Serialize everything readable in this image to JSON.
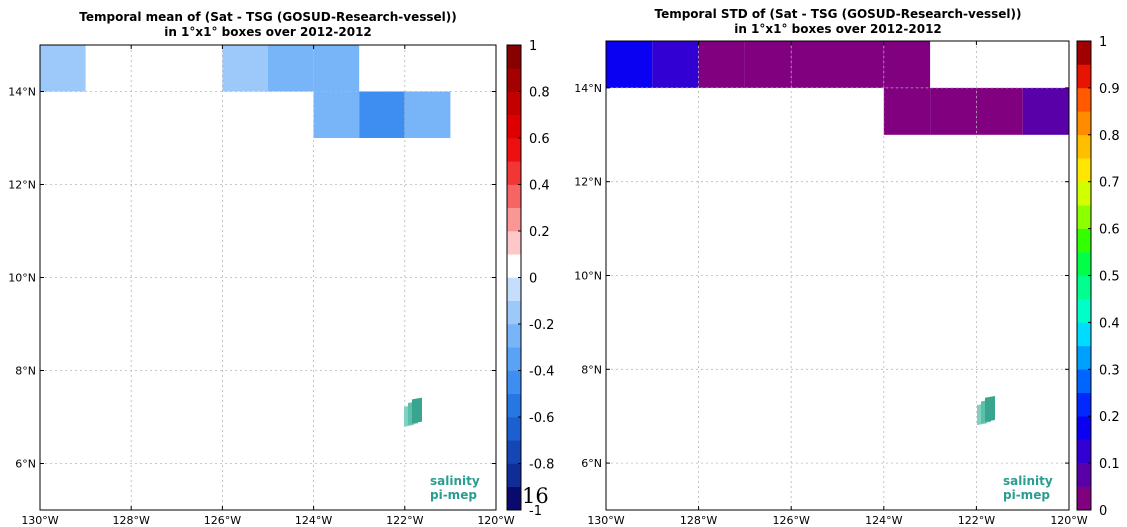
{
  "chart_data": [
    {
      "type": "heatmap",
      "title_line1": "Temporal mean of (Sat - TSG (GOSUD-Research-vessel))",
      "title_line2": "in 1°x1° boxes over 2012-2012",
      "xlim": [
        -130,
        -120
      ],
      "ylim": [
        5,
        15
      ],
      "x_ticks": [
        -130,
        -128,
        -126,
        -124,
        -122,
        -120
      ],
      "x_tick_labels": [
        "130°W",
        "128°W",
        "126°W",
        "124°W",
        "122°W",
        "120°W"
      ],
      "y_ticks": [
        6,
        8,
        10,
        12,
        14
      ],
      "y_tick_labels": [
        "6°N",
        "8°N",
        "10°N",
        "12°N",
        "14°N"
      ],
      "grid": true,
      "colorbar": {
        "range": [
          -1,
          1
        ],
        "step": 0.1,
        "tick_values": [
          1,
          0.8,
          0.6,
          0.4,
          0.2,
          0,
          -0.2,
          -0.4,
          -0.6,
          -0.8,
          -1
        ],
        "tick_labels": [
          "1",
          "0.8",
          "0.6",
          "0.4",
          "0.2",
          "0",
          "-0.2",
          "-0.4",
          "-0.6",
          "-0.8",
          "-1"
        ],
        "colors": [
          "#0a0a6e",
          "#102c96",
          "#1646b4",
          "#1c5fd0",
          "#2676e4",
          "#3e8ef2",
          "#5aa2f6",
          "#78b4f8",
          "#9cc8fa",
          "#c4defc",
          "#ffffff",
          "#fcc8c8",
          "#fa9696",
          "#f66464",
          "#f23636",
          "#ee1010",
          "#de0000",
          "#c20000",
          "#a40000",
          "#880000"
        ]
      },
      "cells": [
        {
          "lon": -130,
          "lat": 14,
          "value": -0.15
        },
        {
          "lon": -126,
          "lat": 14,
          "value": -0.15
        },
        {
          "lon": -125,
          "lat": 14,
          "value": -0.25
        },
        {
          "lon": -124,
          "lat": 14,
          "value": -0.25
        },
        {
          "lon": -124,
          "lat": 13,
          "value": -0.25
        },
        {
          "lon": -123,
          "lat": 13,
          "value": -0.45
        },
        {
          "lon": -122,
          "lat": 13,
          "value": -0.25
        }
      ]
    },
    {
      "type": "heatmap",
      "title_line1": "Temporal STD of (Sat - TSG (GOSUD-Research-vessel))",
      "title_line2": "in 1°x1° boxes over 2012-2012",
      "xlim": [
        -130,
        -120
      ],
      "ylim": [
        5,
        15
      ],
      "x_ticks": [
        -130,
        -128,
        -126,
        -124,
        -122,
        -120
      ],
      "x_tick_labels": [
        "130°W",
        "128°W",
        "126°W",
        "124°W",
        "122°W",
        "120°W"
      ],
      "y_ticks": [
        6,
        8,
        10,
        12,
        14
      ],
      "y_tick_labels": [
        "6°N",
        "8°N",
        "10°N",
        "12°N",
        "14°N"
      ],
      "grid": true,
      "colorbar": {
        "range": [
          0,
          1
        ],
        "step": 0.05,
        "tick_values": [
          1,
          0.9,
          0.8,
          0.7,
          0.6,
          0.5,
          0.4,
          0.3,
          0.2,
          0.1,
          0
        ],
        "tick_labels": [
          "1",
          "0.9",
          "0.8",
          "0.7",
          "0.6",
          "0.5",
          "0.4",
          "0.3",
          "0.2",
          "0.1",
          "0"
        ],
        "colors": [
          "#800080",
          "#5a00a8",
          "#3200d2",
          "#0a00f2",
          "#0028ff",
          "#0064ff",
          "#00a0ff",
          "#00dcff",
          "#00ffc8",
          "#00ff8c",
          "#00ff46",
          "#32ff00",
          "#8cff00",
          "#d2ff00",
          "#ffe600",
          "#ffbe00",
          "#ff8c00",
          "#ff5a00",
          "#e61400",
          "#a00000"
        ]
      },
      "cells": [
        {
          "lon": -130,
          "lat": 14,
          "value": 0.17
        },
        {
          "lon": -129,
          "lat": 14,
          "value": 0.12
        },
        {
          "lon": -128,
          "lat": 14,
          "value": 0.03
        },
        {
          "lon": -127,
          "lat": 14,
          "value": 0.03
        },
        {
          "lon": -126,
          "lat": 14,
          "value": 0.03
        },
        {
          "lon": -125,
          "lat": 14,
          "value": 0.03
        },
        {
          "lon": -124,
          "lat": 14,
          "value": 0.03
        },
        {
          "lon": -124,
          "lat": 13,
          "value": 0.03
        },
        {
          "lon": -123,
          "lat": 13,
          "value": 0.03
        },
        {
          "lon": -122,
          "lat": 13,
          "value": 0.03
        },
        {
          "lon": -121,
          "lat": 13,
          "value": 0.09
        }
      ]
    }
  ],
  "logo": {
    "line1": "salinity",
    "line2": "pi-mep",
    "text_color": "#2a9d8f"
  },
  "page_number": "16"
}
